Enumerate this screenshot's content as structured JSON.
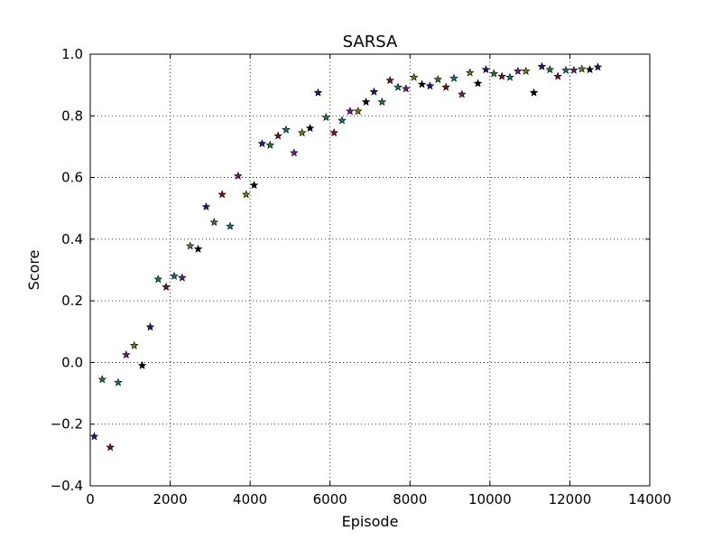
{
  "chart_data": {
    "type": "scatter",
    "title": "SARSA",
    "xlabel": "Episode",
    "ylabel": "Score",
    "xlim": [
      0,
      14000
    ],
    "ylim": [
      -0.4,
      1.0
    ],
    "xticks": [
      0,
      2000,
      4000,
      6000,
      8000,
      10000,
      12000,
      14000
    ],
    "xtick_labels": [
      "0",
      "2000",
      "4000",
      "6000",
      "8000",
      "10000",
      "12000",
      "14000"
    ],
    "yticks": [
      -0.4,
      -0.2,
      0.0,
      0.2,
      0.4,
      0.6,
      0.8,
      1.0
    ],
    "ytick_labels": [
      "−0.4",
      "−0.2",
      "0.0",
      "0.2",
      "0.4",
      "0.6",
      "0.8",
      "1.0"
    ],
    "grid": true,
    "marker": "star",
    "point_colors": [
      "#1a1a7a",
      "#2a7a2a",
      "#7a1a1a",
      "#1a7a7a",
      "#7a1a7a",
      "#7a7a1a",
      "#000000"
    ],
    "points": [
      {
        "x": 100,
        "y": -0.24
      },
      {
        "x": 300,
        "y": -0.055
      },
      {
        "x": 500,
        "y": -0.275
      },
      {
        "x": 700,
        "y": -0.065
      },
      {
        "x": 900,
        "y": 0.025
      },
      {
        "x": 1100,
        "y": 0.055
      },
      {
        "x": 1300,
        "y": -0.01
      },
      {
        "x": 1500,
        "y": 0.115
      },
      {
        "x": 1700,
        "y": 0.27
      },
      {
        "x": 1900,
        "y": 0.245
      },
      {
        "x": 2100,
        "y": 0.28
      },
      {
        "x": 2300,
        "y": 0.275
      },
      {
        "x": 2500,
        "y": 0.378
      },
      {
        "x": 2700,
        "y": 0.368
      },
      {
        "x": 2900,
        "y": 0.505
      },
      {
        "x": 3100,
        "y": 0.455
      },
      {
        "x": 3300,
        "y": 0.545
      },
      {
        "x": 3500,
        "y": 0.442
      },
      {
        "x": 3700,
        "y": 0.605
      },
      {
        "x": 3900,
        "y": 0.545
      },
      {
        "x": 4100,
        "y": 0.575
      },
      {
        "x": 4300,
        "y": 0.71
      },
      {
        "x": 4500,
        "y": 0.705
      },
      {
        "x": 4700,
        "y": 0.735
      },
      {
        "x": 4900,
        "y": 0.755
      },
      {
        "x": 5100,
        "y": 0.68
      },
      {
        "x": 5300,
        "y": 0.745
      },
      {
        "x": 5500,
        "y": 0.76
      },
      {
        "x": 5700,
        "y": 0.875
      },
      {
        "x": 5900,
        "y": 0.795
      },
      {
        "x": 6100,
        "y": 0.745
      },
      {
        "x": 6300,
        "y": 0.785
      },
      {
        "x": 6500,
        "y": 0.815
      },
      {
        "x": 6700,
        "y": 0.815
      },
      {
        "x": 6900,
        "y": 0.845
      },
      {
        "x": 7100,
        "y": 0.878
      },
      {
        "x": 7300,
        "y": 0.845
      },
      {
        "x": 7500,
        "y": 0.915
      },
      {
        "x": 7700,
        "y": 0.893
      },
      {
        "x": 7900,
        "y": 0.888
      },
      {
        "x": 8100,
        "y": 0.925
      },
      {
        "x": 8300,
        "y": 0.902
      },
      {
        "x": 8500,
        "y": 0.897
      },
      {
        "x": 8700,
        "y": 0.918
      },
      {
        "x": 8900,
        "y": 0.893
      },
      {
        "x": 9100,
        "y": 0.922
      },
      {
        "x": 9300,
        "y": 0.87
      },
      {
        "x": 9500,
        "y": 0.94
      },
      {
        "x": 9700,
        "y": 0.905
      },
      {
        "x": 9900,
        "y": 0.95
      },
      {
        "x": 10100,
        "y": 0.937
      },
      {
        "x": 10300,
        "y": 0.928
      },
      {
        "x": 10500,
        "y": 0.925
      },
      {
        "x": 10700,
        "y": 0.945
      },
      {
        "x": 10900,
        "y": 0.945
      },
      {
        "x": 11100,
        "y": 0.875
      },
      {
        "x": 11300,
        "y": 0.96
      },
      {
        "x": 11500,
        "y": 0.95
      },
      {
        "x": 11700,
        "y": 0.928
      },
      {
        "x": 11900,
        "y": 0.948
      },
      {
        "x": 12100,
        "y": 0.948
      },
      {
        "x": 12300,
        "y": 0.952
      },
      {
        "x": 12500,
        "y": 0.95
      },
      {
        "x": 12700,
        "y": 0.958
      }
    ]
  }
}
